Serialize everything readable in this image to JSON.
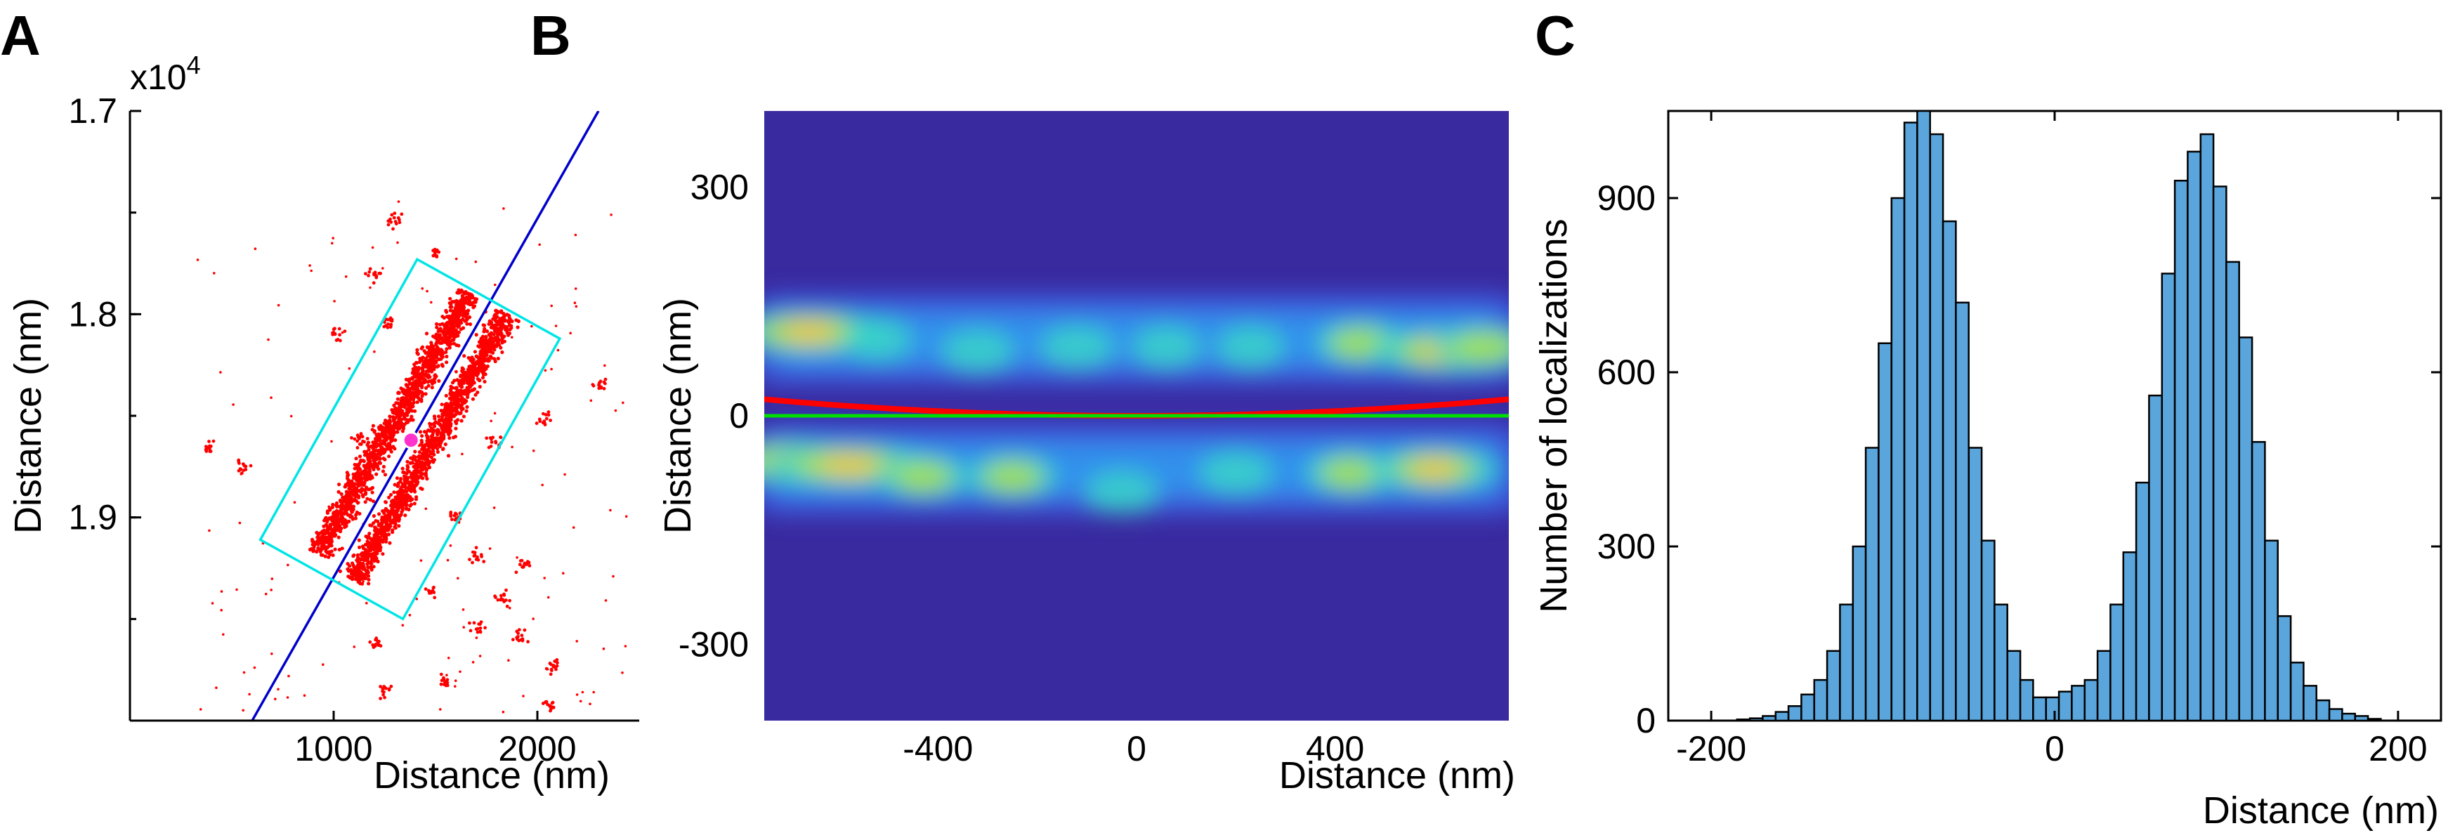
{
  "panels": [
    {
      "label": "A"
    },
    {
      "label": "B"
    },
    {
      "label": "C"
    }
  ],
  "chart_data": [
    {
      "type": "scatter",
      "panel": "A",
      "xlabel": "Distance (nm)",
      "ylabel": "Distance (nm)",
      "y_multiplier": "x10",
      "y_multiplier_exp": "4",
      "xlim": [
        0,
        2500
      ],
      "ylim": [
        17000,
        20000
      ],
      "y_reversed": true,
      "xticks": [
        1000,
        2000
      ],
      "xtick_labels": [
        "1000",
        "2000"
      ],
      "yticks": [
        17000,
        18000,
        19000
      ],
      "ytick_labels": [
        "1.7",
        "1.8",
        "1.9"
      ],
      "point_color": "#ff0000",
      "line_color": "#0000cc",
      "box_color": "#00e5e5",
      "center_color": "#ff33cc",
      "line": [
        [
          600,
          20000
        ],
        [
          2300,
          17000
        ]
      ],
      "box": [
        [
          640,
          19110
        ],
        [
          1340,
          19500
        ],
        [
          2110,
          18120
        ],
        [
          1410,
          17730
        ]
      ],
      "center": [
        1380,
        18620
      ],
      "strands": [
        {
          "from": [
            920,
            19180
          ],
          "to": [
            1670,
            17900
          ],
          "width": 65
        },
        {
          "from": [
            1100,
            19310
          ],
          "to": [
            1850,
            18000
          ],
          "width": 65
        }
      ],
      "clusters": [
        [
          1500,
          17700
        ],
        [
          1200,
          17800
        ],
        [
          1300,
          17550
        ],
        [
          1020,
          18100
        ],
        [
          1270,
          18050
        ],
        [
          2300,
          18340
        ],
        [
          2040,
          18520
        ],
        [
          1780,
          18620
        ],
        [
          1430,
          18750
        ],
        [
          1600,
          18990
        ],
        [
          1940,
          19230
        ],
        [
          1480,
          19370
        ],
        [
          1710,
          19540
        ],
        [
          1210,
          19620
        ],
        [
          1920,
          19590
        ],
        [
          380,
          18660
        ],
        [
          560,
          18740
        ],
        [
          2080,
          19730
        ],
        [
          1250,
          19850
        ],
        [
          1540,
          19810
        ],
        [
          2060,
          19920
        ],
        [
          1830,
          19400
        ],
        [
          1700,
          19180
        ],
        [
          1120,
          18620
        ],
        [
          1640,
          18300
        ]
      ]
    },
    {
      "type": "heatmap",
      "panel": "B",
      "xlabel": "Distance (nm)",
      "ylabel": "Distance (nm)",
      "xlim": [
        -750,
        750
      ],
      "ylim": [
        -400,
        400
      ],
      "xticks": [
        -400,
        0,
        400
      ],
      "xtick_labels": [
        "-400",
        "0",
        "400"
      ],
      "yticks": [
        -300,
        0,
        300
      ],
      "ytick_labels": [
        "-300",
        "0",
        "300"
      ],
      "background_color": "#3a2aa0",
      "bands": [
        {
          "y": 100,
          "blobs": [
            [
              -660,
              110,
              2.8
            ],
            [
              -520,
              100,
              1.2
            ],
            [
              -320,
              85,
              1.3
            ],
            [
              -120,
              90,
              1.3
            ],
            [
              60,
              90,
              1.2
            ],
            [
              230,
              90,
              1.2
            ],
            [
              450,
              95,
              1.6
            ],
            [
              620,
              85,
              2.6
            ],
            [
              700,
              90,
              1.8
            ]
          ]
        },
        {
          "y": -70,
          "blobs": [
            [
              -700,
              -60,
              2.6
            ],
            [
              -580,
              -65,
              3.0
            ],
            [
              -430,
              -80,
              1.6
            ],
            [
              -250,
              -80,
              1.6
            ],
            [
              -30,
              -100,
              1.3
            ],
            [
              200,
              -75,
              1.3
            ],
            [
              430,
              -75,
              1.6
            ],
            [
              600,
              -70,
              2.3
            ]
          ]
        }
      ],
      "curves": [
        {
          "color": "#ff0000",
          "coeffs": [
            3.85e-05,
            0.0,
            0.0
          ]
        },
        {
          "color": "#00e000",
          "coeffs": [
            0.0,
            0.0,
            0.0
          ]
        }
      ]
    },
    {
      "type": "bar",
      "panel": "C",
      "xlabel": "Distance (nm)",
      "ylabel": "Number of localizations",
      "xlim": [
        -225,
        225
      ],
      "ylim": [
        0,
        1050
      ],
      "xticks": [
        -200,
        0,
        200
      ],
      "xtick_labels": [
        "-200",
        "0",
        "200"
      ],
      "yticks": [
        0,
        300,
        600,
        900
      ],
      "ytick_labels": [
        "0",
        "300",
        "600",
        "900"
      ],
      "bar_color": "#5aa6dc",
      "bin_start": -200,
      "bin_width": 7.5,
      "values": [
        0,
        0,
        2,
        4,
        8,
        15,
        25,
        45,
        70,
        120,
        200,
        300,
        470,
        650,
        900,
        1030,
        1050,
        1010,
        860,
        720,
        470,
        310,
        200,
        120,
        70,
        40,
        40,
        50,
        60,
        70,
        120,
        200,
        290,
        410,
        560,
        770,
        930,
        980,
        1010,
        920,
        790,
        660,
        480,
        310,
        180,
        100,
        60,
        35,
        20,
        12,
        8,
        3
      ]
    }
  ]
}
